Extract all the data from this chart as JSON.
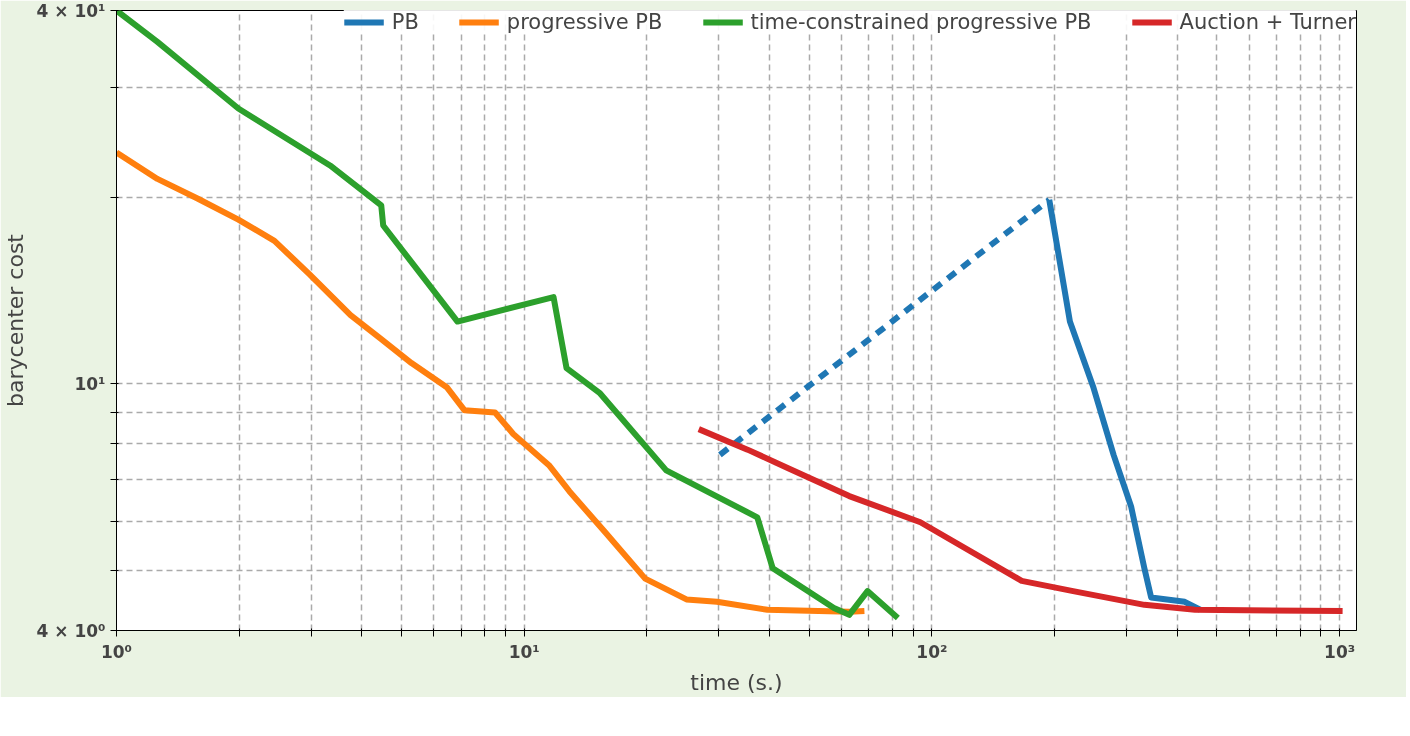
{
  "chart_data": {
    "type": "line",
    "xlabel": "time (s.)",
    "ylabel": "barycenter cost",
    "log": "xy",
    "grid": true,
    "legend": "top right",
    "xlim": [
      1,
      1100
    ],
    "ylim": [
      4,
      40
    ],
    "xticks": [
      {
        "value": 1,
        "label": "10⁰"
      },
      {
        "value": 2,
        "label": null
      },
      {
        "value": 3,
        "label": null
      },
      {
        "value": 4,
        "label": null
      },
      {
        "value": 5,
        "label": null
      },
      {
        "value": 6,
        "label": null
      },
      {
        "value": 7,
        "label": null
      },
      {
        "value": 8,
        "label": null
      },
      {
        "value": 9,
        "label": null
      },
      {
        "value": 10,
        "label": "10¹"
      },
      {
        "value": 20,
        "label": null
      },
      {
        "value": 30,
        "label": null
      },
      {
        "value": 40,
        "label": null
      },
      {
        "value": 50,
        "label": null
      },
      {
        "value": 60,
        "label": null
      },
      {
        "value": 70,
        "label": null
      },
      {
        "value": 80,
        "label": null
      },
      {
        "value": 90,
        "label": null
      },
      {
        "value": 100,
        "label": "10²"
      },
      {
        "value": 200,
        "label": null
      },
      {
        "value": 300,
        "label": null
      },
      {
        "value": 400,
        "label": null
      },
      {
        "value": 500,
        "label": null
      },
      {
        "value": 600,
        "label": null
      },
      {
        "value": 700,
        "label": null
      },
      {
        "value": 800,
        "label": null
      },
      {
        "value": 900,
        "label": null
      },
      {
        "value": 1000,
        "label": "10³"
      }
    ],
    "yticks": [
      {
        "value": 4,
        "label": "4 × 10⁰"
      },
      {
        "value": 5,
        "label": null
      },
      {
        "value": 6,
        "label": null
      },
      {
        "value": 7,
        "label": null
      },
      {
        "value": 8,
        "label": null
      },
      {
        "value": 9,
        "label": null
      },
      {
        "value": 10,
        "label": "10¹"
      },
      {
        "value": 20,
        "label": null
      },
      {
        "value": 30,
        "label": null
      },
      {
        "value": 40,
        "label": "4 × 10¹"
      }
    ],
    "series": [
      {
        "name": "PB",
        "color": "#1f77b4",
        "line_style": "solid",
        "x": [
          194,
          218,
          249,
          279,
          308,
          332,
          345,
          417,
          455
        ],
        "values": [
          19.8,
          12.6,
          9.86,
          7.68,
          6.34,
          5.04,
          4.52,
          4.45,
          4.32
        ]
      },
      {
        "color": "#1f77b4",
        "line_style": "dashed",
        "x": [
          30.2,
          194
        ],
        "values": [
          7.68,
          19.8
        ]
      },
      {
        "name": "progressive PB",
        "color": "#ff7f0e",
        "line_style": "solid",
        "x": [
          1,
          1.26,
          1.58,
          1.99,
          2.44,
          2.98,
          3.75,
          4.46,
          5.29,
          6.47,
          7.14,
          8.48,
          9.4,
          11.5,
          12.9,
          15.8,
          19.8,
          25.0,
          29.7,
          39.5,
          62.7,
          68.3
        ],
        "values": [
          23.6,
          21.4,
          19.9,
          18.4,
          17.0,
          15.0,
          12.9,
          11.8,
          10.8,
          9.86,
          9.06,
          8.99,
          8.3,
          7.39,
          6.71,
          5.76,
          4.85,
          4.49,
          4.45,
          4.32,
          4.29,
          4.3
        ]
      },
      {
        "name": "time-constrained progressive PB",
        "color": "#2ca02c",
        "line_style": "solid",
        "x": [
          1,
          1.26,
          1.99,
          3.34,
          4.46,
          4.51,
          6.86,
          11.8,
          12.7,
          15.3,
          22.3,
          37.3,
          40.7,
          57.5,
          62.7,
          69.5,
          82.5
        ],
        "values": [
          40,
          35.6,
          27.8,
          22.5,
          19.4,
          18.0,
          12.6,
          13.8,
          10.6,
          9.67,
          7.25,
          6.09,
          5.04,
          4.35,
          4.24,
          4.63,
          4.19
        ]
      },
      {
        "name": "Auction + Turner",
        "color": "#d62728",
        "line_style": "solid",
        "x": [
          26.8,
          35.3,
          44.4,
          62.7,
          93.7,
          166,
          222,
          332,
          442,
          1017
        ],
        "values": [
          8.45,
          7.83,
          7.31,
          6.59,
          5.98,
          4.81,
          4.63,
          4.4,
          4.32,
          4.3
        ]
      }
    ]
  }
}
